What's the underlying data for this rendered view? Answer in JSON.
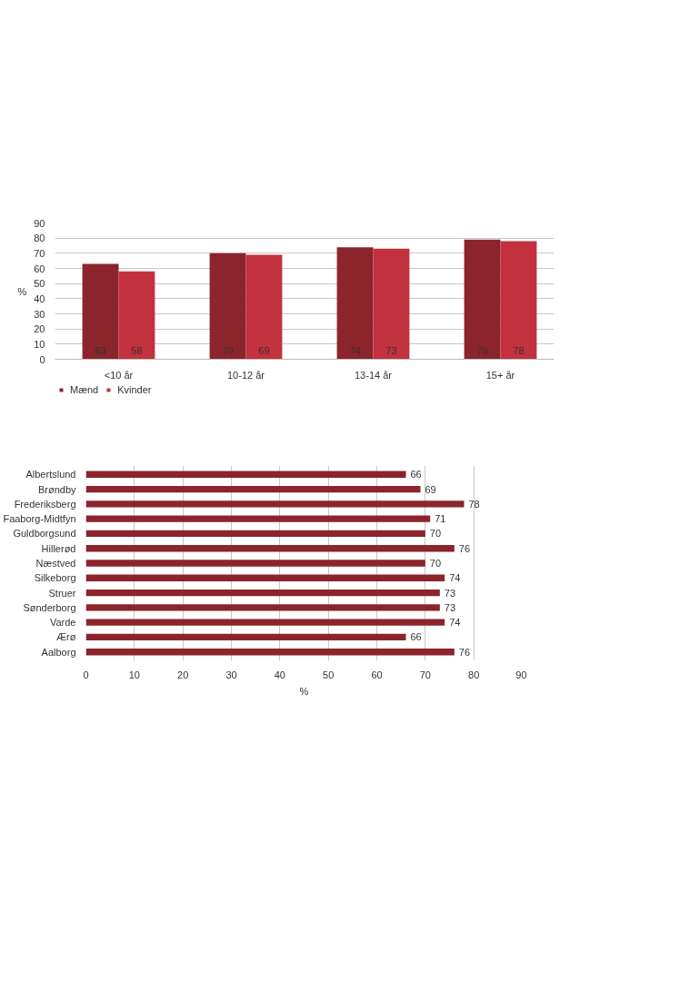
{
  "chart_data": [
    {
      "type": "bar",
      "ylabel": "%",
      "categories": [
        "<10 år",
        "10-12 år",
        "13-14 år",
        "15+ år"
      ],
      "series": [
        {
          "name": "Mænd",
          "color": "#8b242b",
          "values": [
            63,
            70,
            74,
            79
          ]
        },
        {
          "name": "Kvinder",
          "color": "#c2323e",
          "values": [
            58,
            69,
            73,
            78
          ]
        }
      ],
      "ylim": [
        0,
        90
      ],
      "yticks": [
        0,
        10,
        20,
        30,
        40,
        50,
        60,
        70,
        80,
        90
      ],
      "grid": "y",
      "legend": "bottom left",
      "data_labels": true
    },
    {
      "type": "bar",
      "orientation": "horizontal",
      "xlabel": "%",
      "categories": [
        "Albertslund",
        "Brøndby",
        "Frederiksberg",
        "Faaborg-Midtfyn",
        "Guldborgsund",
        "Hillerød",
        "Næstved",
        "Silkeborg",
        "Struer",
        "Sønderborg",
        "Varde",
        "Ærø",
        "Aalborg"
      ],
      "values": [
        66,
        69,
        78,
        71,
        70,
        76,
        70,
        74,
        73,
        73,
        74,
        66,
        76
      ],
      "color": "#8b242b",
      "xlim": [
        0,
        90
      ],
      "xticks": [
        0,
        10,
        20,
        30,
        40,
        50,
        60,
        70,
        80,
        90
      ],
      "grid": "x",
      "data_labels": true
    }
  ]
}
